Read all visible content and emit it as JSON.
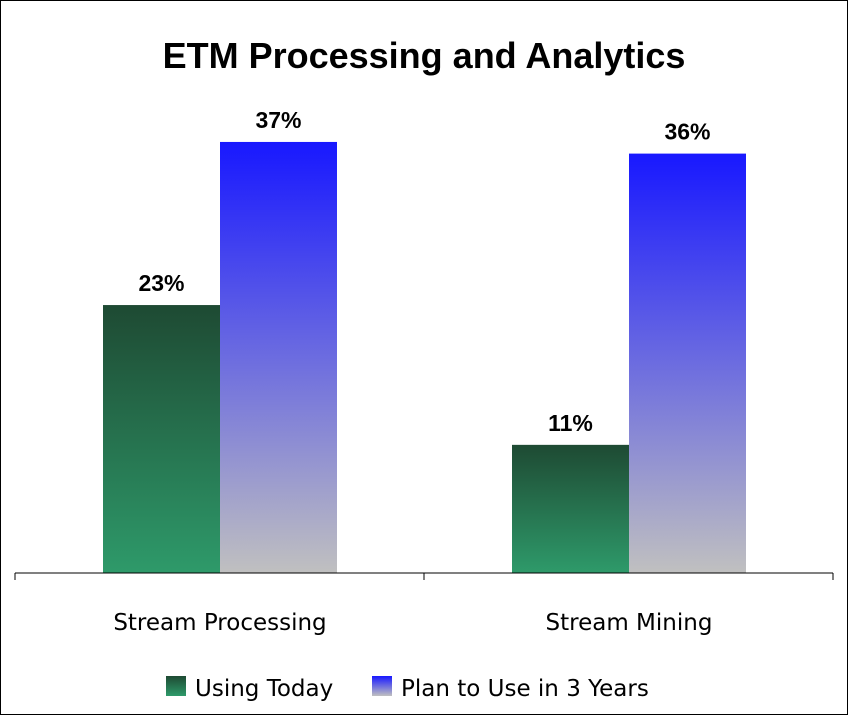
{
  "chart_data": {
    "type": "bar",
    "title": "ETM Processing and Analytics",
    "categories": [
      "Stream Processing",
      "Stream Mining"
    ],
    "series": [
      {
        "name": "Using Today",
        "values": [
          23,
          11
        ],
        "labels": [
          "23%",
          "11%"
        ],
        "color_top": "#1e4a33",
        "color_bottom": "#2e9a6a"
      },
      {
        "name": "Plan to Use in 3 Years",
        "values": [
          37,
          36
        ],
        "labels": [
          "37%",
          "36%"
        ],
        "color_top": "#1818ff",
        "color_bottom": "#c0c0c0"
      }
    ],
    "value_unit": "%",
    "ylim": [
      0,
      40
    ],
    "grid": false,
    "legend": "bottom"
  }
}
